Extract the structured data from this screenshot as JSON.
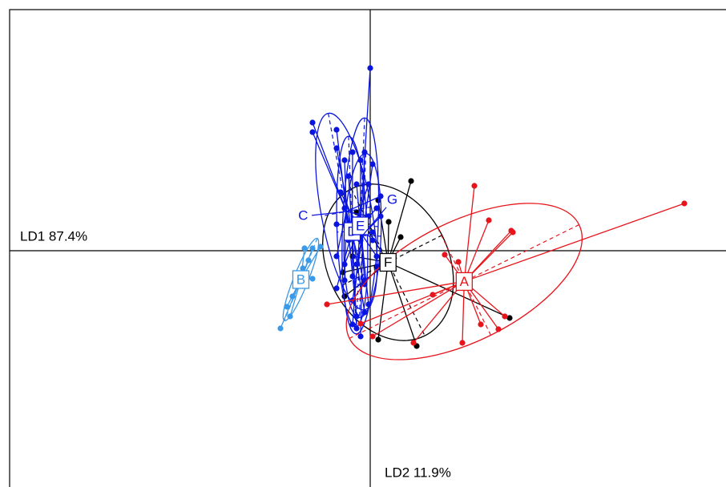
{
  "chart_data": {
    "type": "scatter",
    "xlabel": "LD1 87.4%",
    "ylabel": "LD2 11.9%",
    "xlim": [
      -4.5,
      4.44
    ],
    "ylim": [
      -2.95,
      3.01
    ],
    "series": [
      {
        "name": "A",
        "color": "#e8141c",
        "x": [
          1.3,
          1.48,
          1.76,
          0.93,
          1.1,
          3.92,
          0.54,
          1.15,
          0.78,
          1.6,
          -0.54,
          0.03,
          -0.12,
          1.38,
          1.78,
          1.68
        ],
        "y": [
          0.81,
          0.38,
          0.25,
          -0.05,
          -0.14,
          0.59,
          -1.15,
          -1.15,
          -0.55,
          -0.98,
          -0.67,
          -1.07,
          -0.91,
          -0.92,
          0.23,
          -0.82
        ]
      },
      {
        "name": "B",
        "color": "#3a99e8",
        "x": [
          -1.12,
          -1.04,
          -0.97,
          -0.9,
          -0.84,
          -0.82,
          -0.72,
          -0.62,
          -0.77,
          -0.72,
          -1.0
        ],
        "y": [
          -0.97,
          -0.7,
          -0.57,
          -0.32,
          -0.22,
          0.03,
          0.03,
          0.05,
          -0.12,
          -0.35,
          -0.82
        ]
      },
      {
        "name": "C",
        "color": "#0a14e0",
        "x": [
          -0.72,
          -0.72,
          -0.42,
          -0.32,
          -0.22,
          -0.02,
          0.13,
          -0.07,
          -0.17,
          -0.32,
          -0.42
        ],
        "y": [
          1.6,
          1.48,
          1.51,
          1.13,
          0.23,
          0.43,
          0.68,
          -0.42,
          -0.82,
          -0.37,
          -0.07
        ]
      },
      {
        "name": "D",
        "color": "#0a14e0",
        "x": [
          -0.42,
          -0.22,
          -0.02,
          -0.12,
          -0.22,
          -0.07,
          -0.32,
          -0.17,
          -0.42,
          -0.27
        ],
        "y": [
          1.28,
          1.23,
          0.83,
          0.13,
          -0.32,
          -0.77,
          0.53,
          -0.97,
          -0.47,
          0.93
        ]
      },
      {
        "name": "E",
        "color": "#0a14e0",
        "x": [
          0.0,
          -0.12,
          0.08,
          -0.07,
          -0.22,
          -0.02,
          -0.32,
          -0.42,
          -0.17,
          0.03
        ],
        "y": [
          2.28,
          1.13,
          0.53,
          -0.37,
          -0.92,
          -0.67,
          -0.17,
          0.33,
          0.83,
          0.13
        ]
      },
      {
        "name": "F",
        "color": "#000000",
        "x": [
          0.51,
          0.23,
          0.1,
          1.74,
          0.58,
          0.1,
          -0.32,
          -0.34,
          -0.17,
          0.38,
          -0.22,
          0.08
        ],
        "y": [
          0.87,
          0.36,
          0.63,
          -0.84,
          -1.19,
          -1.11,
          -0.57,
          -0.27,
          0.48,
          0.17,
          -0.07,
          -0.2
        ]
      },
      {
        "name": "G",
        "color": "#0a14e0",
        "x": [
          -0.07,
          0.03,
          0.13,
          -0.17,
          -0.22,
          -0.37,
          -0.12,
          0.03,
          -0.27,
          0.08
        ],
        "y": [
          1.23,
          1.08,
          0.43,
          -0.17,
          -0.62,
          0.73,
          -1.07,
          0.23,
          0.13,
          -0.07
        ]
      }
    ]
  }
}
